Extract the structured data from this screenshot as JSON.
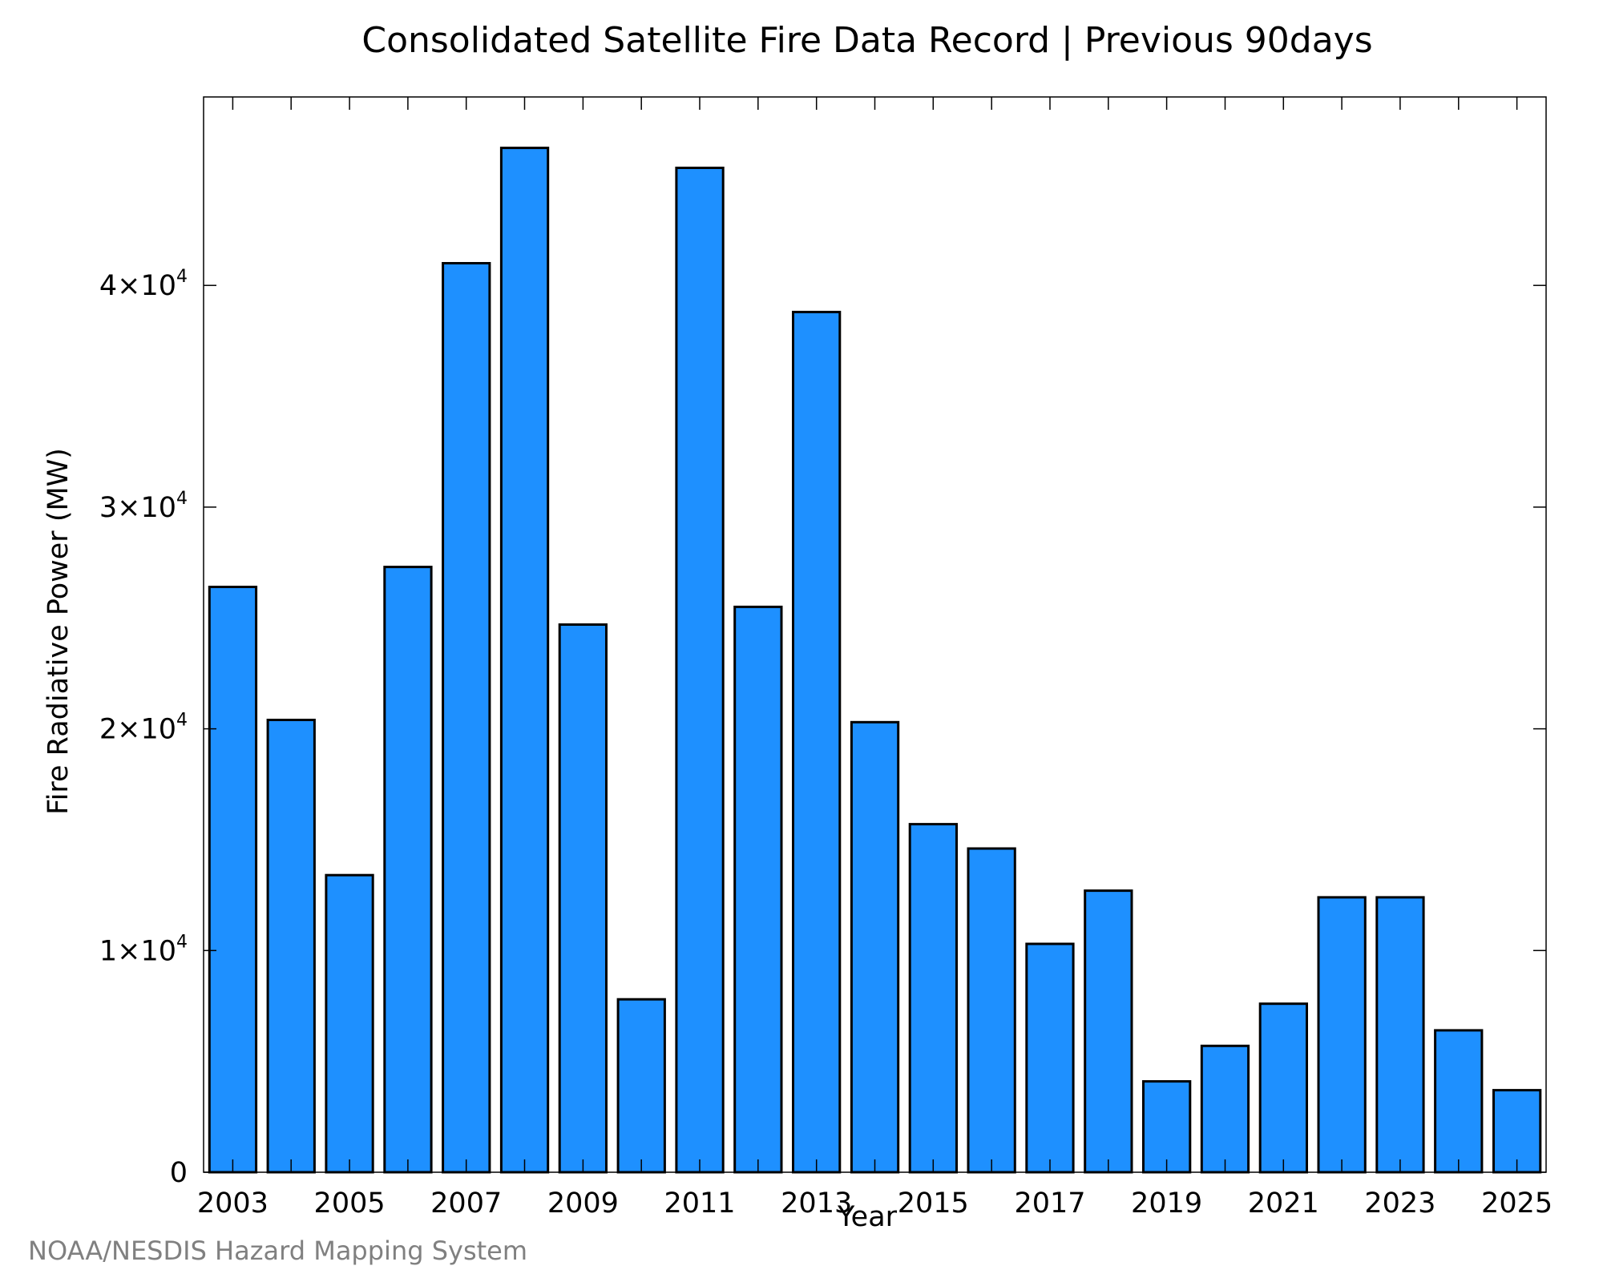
{
  "chart_data": {
    "type": "bar",
    "title": "Consolidated Satellite Fire Data Record | Previous 90days",
    "xlabel": "Year",
    "ylabel": "Fire Radiative Power (MW)",
    "ylim": [
      0,
      48500
    ],
    "bar_color": "#1e90ff",
    "bar_edge_color": "#000000",
    "grid": false,
    "categories": [
      2003,
      2004,
      2005,
      2006,
      2007,
      2008,
      2009,
      2010,
      2011,
      2012,
      2013,
      2014,
      2015,
      2016,
      2017,
      2018,
      2019,
      2020,
      2021,
      2022,
      2023,
      2024,
      2025
    ],
    "values": [
      26400,
      20400,
      13400,
      27300,
      41000,
      46200,
      24700,
      7800,
      45300,
      25500,
      38800,
      20300,
      15700,
      14600,
      10300,
      12700,
      4100,
      5700,
      7600,
      12400,
      12400,
      6400,
      3700
    ],
    "x_tick_labels": [
      "2003",
      "2005",
      "2007",
      "2009",
      "2011",
      "2013",
      "2015",
      "2017",
      "2019",
      "2021",
      "2023",
      "2025"
    ],
    "y_ticks": [
      {
        "value": 0,
        "label": "0",
        "exp": ""
      },
      {
        "value": 10000,
        "label": "1×10",
        "exp": "4"
      },
      {
        "value": 20000,
        "label": "2×10",
        "exp": "4"
      },
      {
        "value": 30000,
        "label": "3×10",
        "exp": "4"
      },
      {
        "value": 40000,
        "label": "4×10",
        "exp": "4"
      }
    ]
  },
  "footer": {
    "credit": "NOAA/NESDIS Hazard Mapping System"
  }
}
